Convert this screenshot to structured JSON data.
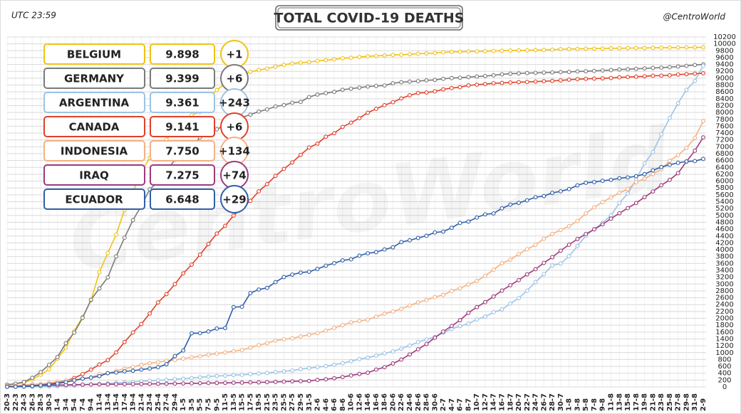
{
  "chart_data": {
    "type": "line",
    "title": "TOTAL COVID-19 DEATHS",
    "subtitle": "UTC 23:59",
    "credit": "@CentroWorld",
    "watermark": "CentroWorld",
    "grid": true,
    "ylim": [
      0,
      10200
    ],
    "yticks": [
      0,
      200,
      400,
      600,
      800,
      1000,
      1200,
      1400,
      1600,
      1800,
      2000,
      2200,
      2400,
      2600,
      2800,
      3000,
      3200,
      3400,
      3600,
      3800,
      4000,
      4200,
      4400,
      4600,
      4800,
      5000,
      5200,
      5400,
      5600,
      5800,
      6000,
      6200,
      6400,
      6600,
      6800,
      7000,
      7200,
      7400,
      7600,
      7800,
      8000,
      8200,
      8400,
      8600,
      8800,
      9000,
      9200,
      9400,
      9600,
      9800,
      10000,
      10200
    ],
    "categories": [
      "20-3",
      "22-3",
      "24-3",
      "26-3",
      "28-3",
      "30-3",
      "1-4",
      "3-4",
      "5-4",
      "7-4",
      "9-4",
      "11-4",
      "13-4",
      "15-4",
      "17-4",
      "19-4",
      "21-4",
      "23-4",
      "25-4",
      "27-4",
      "29-4",
      "1-5",
      "3-5",
      "5-5",
      "7-5",
      "9-5",
      "11-5",
      "13-5",
      "15-5",
      "17-5",
      "19-5",
      "21-5",
      "23-5",
      "25-5",
      "27-5",
      "29-5",
      "31-5",
      "2-6",
      "4-6",
      "6-6",
      "8-6",
      "10-6",
      "12-6",
      "14-6",
      "16-6",
      "18-6",
      "20-6",
      "22-6",
      "24-6",
      "26-6",
      "28-6",
      "30-6",
      "2-7",
      "4-7",
      "6-7",
      "8-7",
      "10-7",
      "12-7",
      "14-7",
      "16-7",
      "18-7",
      "20-7",
      "22-7",
      "24-7",
      "26-7",
      "28-7",
      "30-7",
      "1-8",
      "3-8",
      "5-8",
      "7-8",
      "9-8",
      "11-8",
      "13-8",
      "15-8",
      "17-8",
      "19-8",
      "21-8",
      "23-8",
      "25-8",
      "27-8",
      "29-8",
      "31-8",
      "2-9"
    ],
    "series": [
      {
        "name": "BELGIUM",
        "total": "9.898",
        "change": "+1",
        "color": "#f2c20f",
        "values": [
          67,
          88,
          122,
          220,
          353,
          513,
          828,
          1143,
          1632,
          2035,
          2523,
          3346,
          3903,
          4440,
          5163,
          5683,
          6262,
          6679,
          6917,
          7207,
          7501,
          7765,
          7924,
          8016,
          8415,
          8656,
          8843,
          8959,
          9080,
          9186,
          9237,
          9280,
          9334,
          9388,
          9430,
          9453,
          9467,
          9505,
          9522,
          9548,
          9580,
          9595,
          9619,
          9636,
          9650,
          9661,
          9675,
          9683,
          9696,
          9713,
          9722,
          9732,
          9754,
          9765,
          9771,
          9778,
          9782,
          9787,
          9795,
          9800,
          9805,
          9810,
          9812,
          9818,
          9822,
          9830,
          9845,
          9850,
          9855,
          9860,
          9862,
          9866,
          9870,
          9873,
          9876,
          9878,
          9879,
          9885,
          9887,
          9890,
          9892,
          9895,
          9897,
          9898
        ]
      },
      {
        "name": "GERMANY",
        "total": "9.399",
        "change": "+6",
        "color": "#7a7a7a",
        "values": [
          67,
          94,
          149,
          267,
          433,
          645,
          872,
          1275,
          1584,
          2016,
          2544,
          2871,
          3194,
          3804,
          4352,
          4862,
          5279,
          5760,
          5976,
          6288,
          6623,
          6812,
          6993,
          7275,
          7417,
          7510,
          7634,
          7738,
          7861,
          7935,
          8027,
          8090,
          8174,
          8216,
          8283,
          8309,
          8450,
          8522,
          8563,
          8602,
          8662,
          8694,
          8725,
          8755,
          8772,
          8787,
          8851,
          8882,
          8899,
          8914,
          8936,
          8950,
          8980,
          9003,
          9015,
          9030,
          9048,
          9062,
          9084,
          9110,
          9130,
          9139,
          9148,
          9155,
          9161,
          9168,
          9175,
          9182,
          9195,
          9202,
          9211,
          9225,
          9236,
          9252,
          9260,
          9272,
          9285,
          9298,
          9307,
          9320,
          9340,
          9360,
          9385,
          9399
        ]
      },
      {
        "name": "ARGENTINA",
        "total": "9.361",
        "change": "+243",
        "color": "#9dc3e6",
        "values": [
          3,
          4,
          4,
          5,
          6,
          12,
          19,
          27,
          44,
          60,
          79,
          90,
          101,
          119,
          132,
          147,
          165,
          181,
          192,
          208,
          225,
          239,
          260,
          282,
          305,
          319,
          329,
          348,
          353,
          375,
          393,
          410,
          433,
          456,
          479,
          520,
          548,
          580,
          608,
          648,
          693,
          750,
          815,
          854,
          913,
          979,
          1035,
          1116,
          1207,
          1307,
          1385,
          1453,
          1581,
          1694,
          1774,
          1845,
          1968,
          2050,
          2178,
          2260,
          2432,
          2588,
          2807,
          3059,
          3288,
          3543,
          3596,
          3813,
          4106,
          4411,
          4606,
          4784,
          5004,
          5362,
          5637,
          6048,
          6517,
          6848,
          7366,
          7839,
          8271,
          8660,
          8919,
          9361
        ]
      },
      {
        "name": "CANADA",
        "total": "9.141",
        "change": "+6",
        "color": "#e0402a",
        "values": [
          12,
          20,
          25,
          39,
          61,
          89,
          119,
          185,
          260,
          375,
          506,
          654,
          780,
          1006,
          1310,
          1587,
          1834,
          2141,
          2465,
          2707,
          2996,
          3310,
          3566,
          3854,
          4167,
          4471,
          4697,
          4995,
          5209,
          5427,
          5702,
          5912,
          6152,
          6355,
          6545,
          6766,
          6979,
          7092,
          7295,
          7395,
          7579,
          7703,
          7835,
          7992,
          8107,
          8213,
          8300,
          8410,
          8500,
          8566,
          8582,
          8615,
          8674,
          8711,
          8737,
          8790,
          8810,
          8827,
          8852,
          8860,
          8874,
          8885,
          8890,
          8901,
          8910,
          8920,
          8935,
          8955,
          8970,
          8981,
          8987,
          8994,
          9005,
          9024,
          9032,
          9042,
          9054,
          9071,
          9074,
          9083,
          9106,
          9117,
          9132,
          9141
        ]
      },
      {
        "name": "INDONESIA",
        "total": "7.750",
        "change": "+134",
        "color": "#f4b183",
        "values": [
          32,
          38,
          55,
          78,
          87,
          122,
          157,
          191,
          209,
          240,
          280,
          373,
          399,
          469,
          535,
          582,
          647,
          689,
          720,
          765,
          784,
          827,
          864,
          895,
          943,
          973,
          1007,
          1043,
          1076,
          1148,
          1221,
          1278,
          1351,
          1391,
          1418,
          1473,
          1520,
          1573,
          1641,
          1721,
          1801,
          1883,
          1923,
          1959,
          2048,
          2134,
          2198,
          2276,
          2373,
          2465,
          2535,
          2620,
          2683,
          2801,
          2876,
          2987,
          3089,
          3241,
          3417,
          3606,
          3710,
          3873,
          4016,
          4143,
          4320,
          4459,
          4576,
          4687,
          4838,
          5058,
          5236,
          5388,
          5521,
          5658,
          5765,
          5968,
          6071,
          6207,
          6346,
          6594,
          6759,
          6968,
          7261,
          7750
        ]
      },
      {
        "name": "IRAQ",
        "total": "7.275",
        "change": "+74",
        "color": "#9e3a7c",
        "values": [
          10,
          12,
          27,
          36,
          42,
          50,
          56,
          61,
          69,
          70,
          72,
          76,
          78,
          80,
          83,
          85,
          87,
          90,
          92,
          95,
          97,
          102,
          107,
          108,
          115,
          117,
          121,
          123,
          127,
          133,
          135,
          141,
          148,
          156,
          165,
          170,
          175,
          206,
          224,
          254,
          289,
          335,
          380,
          415,
          506,
          577,
          684,
          799,
          948,
          1100,
          1251,
          1437,
          1615,
          1776,
          1946,
          2160,
          2327,
          2473,
          2636,
          2809,
          2965,
          3113,
          3283,
          3432,
          3617,
          3781,
          3972,
          4147,
          4312,
          4458,
          4594,
          4741,
          4906,
          5063,
          5212,
          5360,
          5532,
          5698,
          5878,
          6036,
          6232,
          6568,
          6886,
          7275
        ]
      },
      {
        "name": "ECUADOR",
        "total": "6.648",
        "change": "+29",
        "color": "#2f5fa8",
        "values": [
          5,
          7,
          14,
          28,
          48,
          75,
          101,
          141,
          191,
          242,
          272,
          315,
          403,
          421,
          456,
          474,
          507,
          537,
          576,
          663,
          900,
          1063,
          1564,
          1569,
          1618,
          1704,
          1717,
          2327,
          2338,
          2736,
          2839,
          2888,
          3056,
          3203,
          3275,
          3334,
          3358,
          3439,
          3534,
          3608,
          3690,
          3720,
          3828,
          3896,
          3929,
          4007,
          4071,
          4223,
          4274,
          4343,
          4406,
          4502,
          4527,
          4639,
          4781,
          4821,
          4938,
          5032,
          5058,
          5207,
          5313,
          5366,
          5439,
          5532,
          5563,
          5657,
          5702,
          5767,
          5877,
          5951,
          5972,
          6010,
          6036,
          6083,
          6107,
          6142,
          6203,
          6313,
          6410,
          6477,
          6531,
          6573,
          6583,
          6648
        ]
      }
    ]
  }
}
